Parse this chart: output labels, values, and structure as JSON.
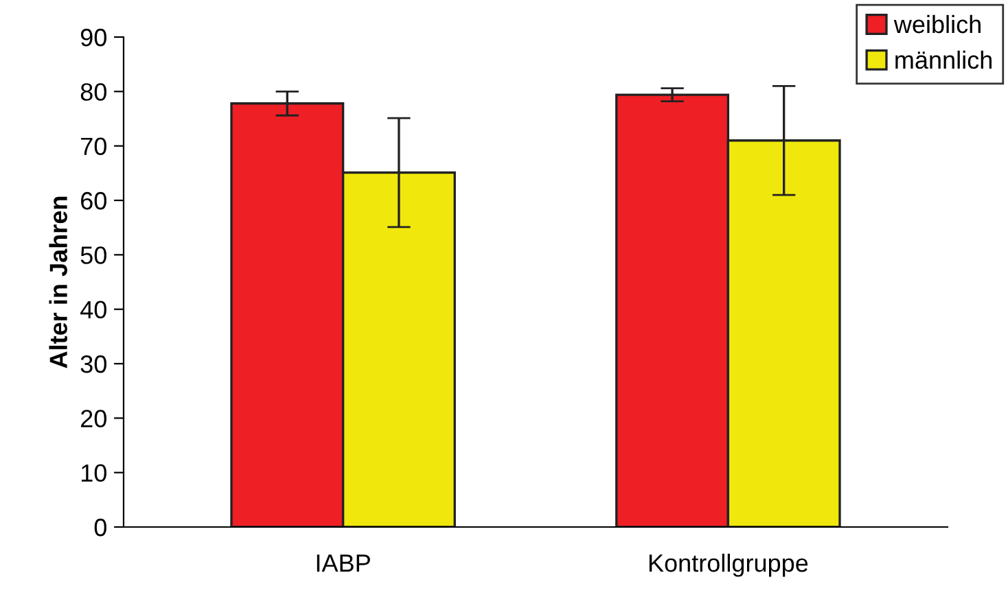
{
  "chart_data": {
    "type": "bar",
    "ylabel": "Alter in Jahren",
    "categories": [
      "IABP",
      "Kontrollgruppe"
    ],
    "series": [
      {
        "name": "weiblich",
        "color": "#ee1f25",
        "values": [
          77.8,
          79.4
        ],
        "errors": [
          2.2,
          1.2
        ]
      },
      {
        "name": "männlich",
        "color": "#f0e80c",
        "values": [
          65.1,
          71.0
        ],
        "errors": [
          10,
          10
        ]
      }
    ],
    "ylim": [
      0,
      90
    ],
    "yticks": [
      0,
      10,
      20,
      30,
      40,
      50,
      60,
      70,
      80,
      90
    ],
    "grid": false,
    "legend": "top right"
  }
}
